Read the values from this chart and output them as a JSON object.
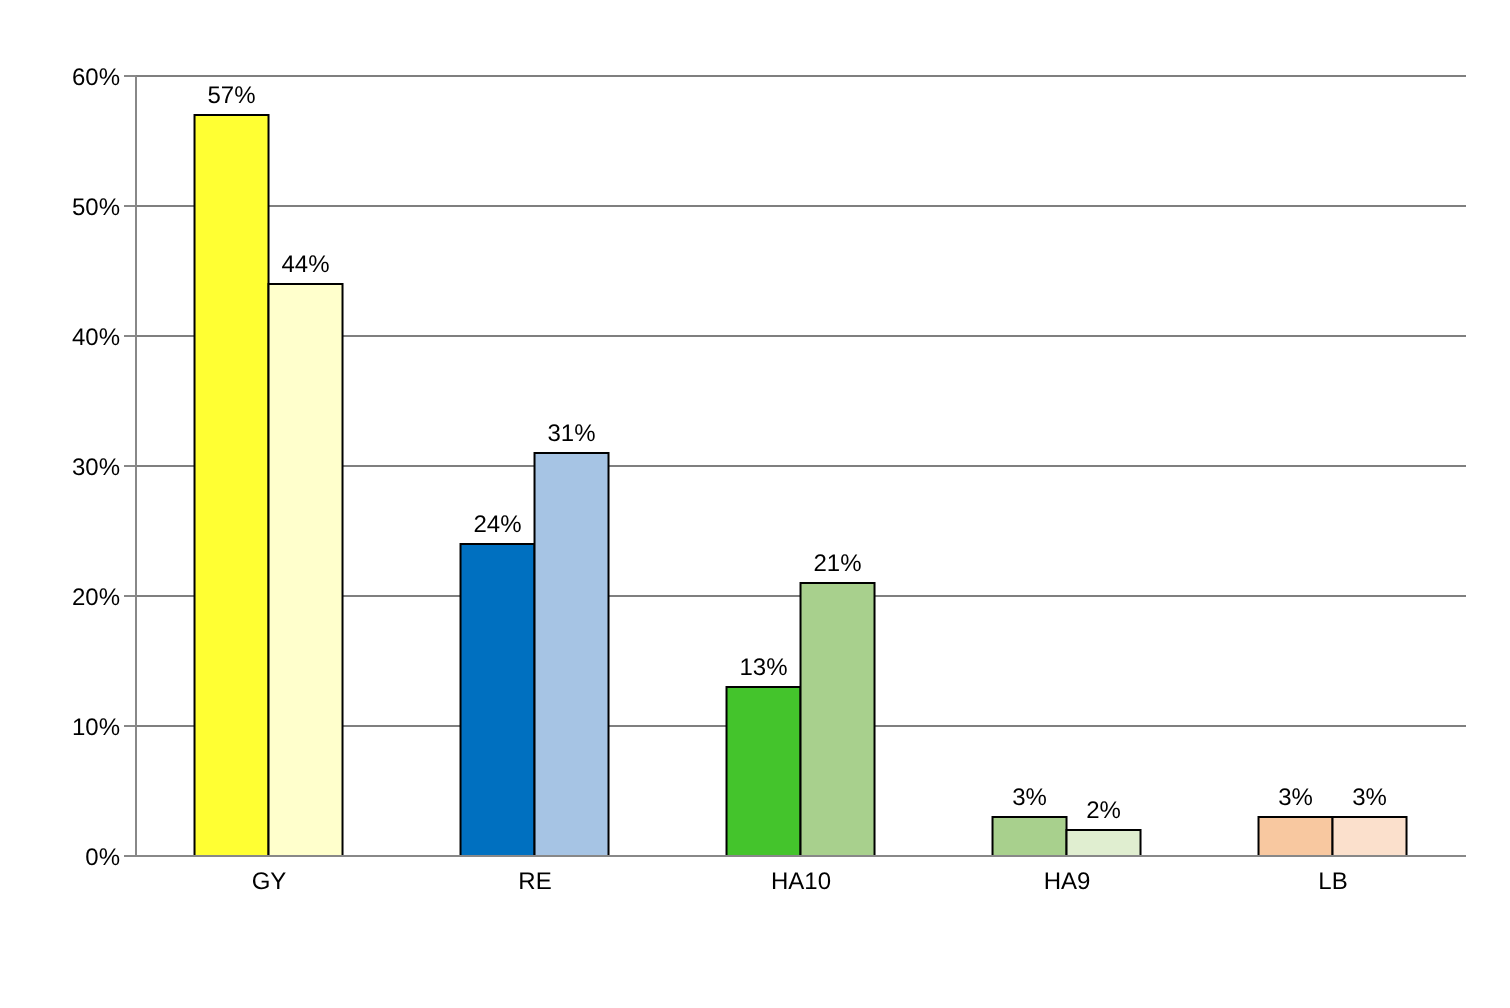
{
  "chart_data": {
    "type": "bar",
    "categories": [
      "GY",
      "RE",
      "HA10",
      "HA9",
      "LB"
    ],
    "series": [
      {
        "colors": [
          "#ffff33",
          "#0070c0",
          "#44c42c",
          "#a8d08d",
          "#f8c8a0"
        ],
        "values": [
          57,
          24,
          13,
          3,
          3
        ],
        "value_labels": [
          "57%",
          "24%",
          "13%",
          "3%",
          "3%"
        ]
      },
      {
        "colors": [
          "#ffffcc",
          "#a6c4e4",
          "#a8d08d",
          "#e0eed0",
          "#fbe0cc"
        ],
        "values": [
          44,
          31,
          21,
          2,
          3
        ],
        "value_labels": [
          "44%",
          "31%",
          "21%",
          "2%",
          "3%"
        ]
      }
    ],
    "ylim": [
      0,
      60
    ],
    "yticks": [
      {
        "value": 0,
        "label": "0%"
      },
      {
        "value": 10,
        "label": "10%"
      },
      {
        "value": 20,
        "label": "20%"
      },
      {
        "value": 30,
        "label": "30%"
      },
      {
        "value": 40,
        "label": "40%"
      },
      {
        "value": 50,
        "label": "50%"
      },
      {
        "value": 60,
        "label": "60%"
      }
    ],
    "grid": "y"
  }
}
